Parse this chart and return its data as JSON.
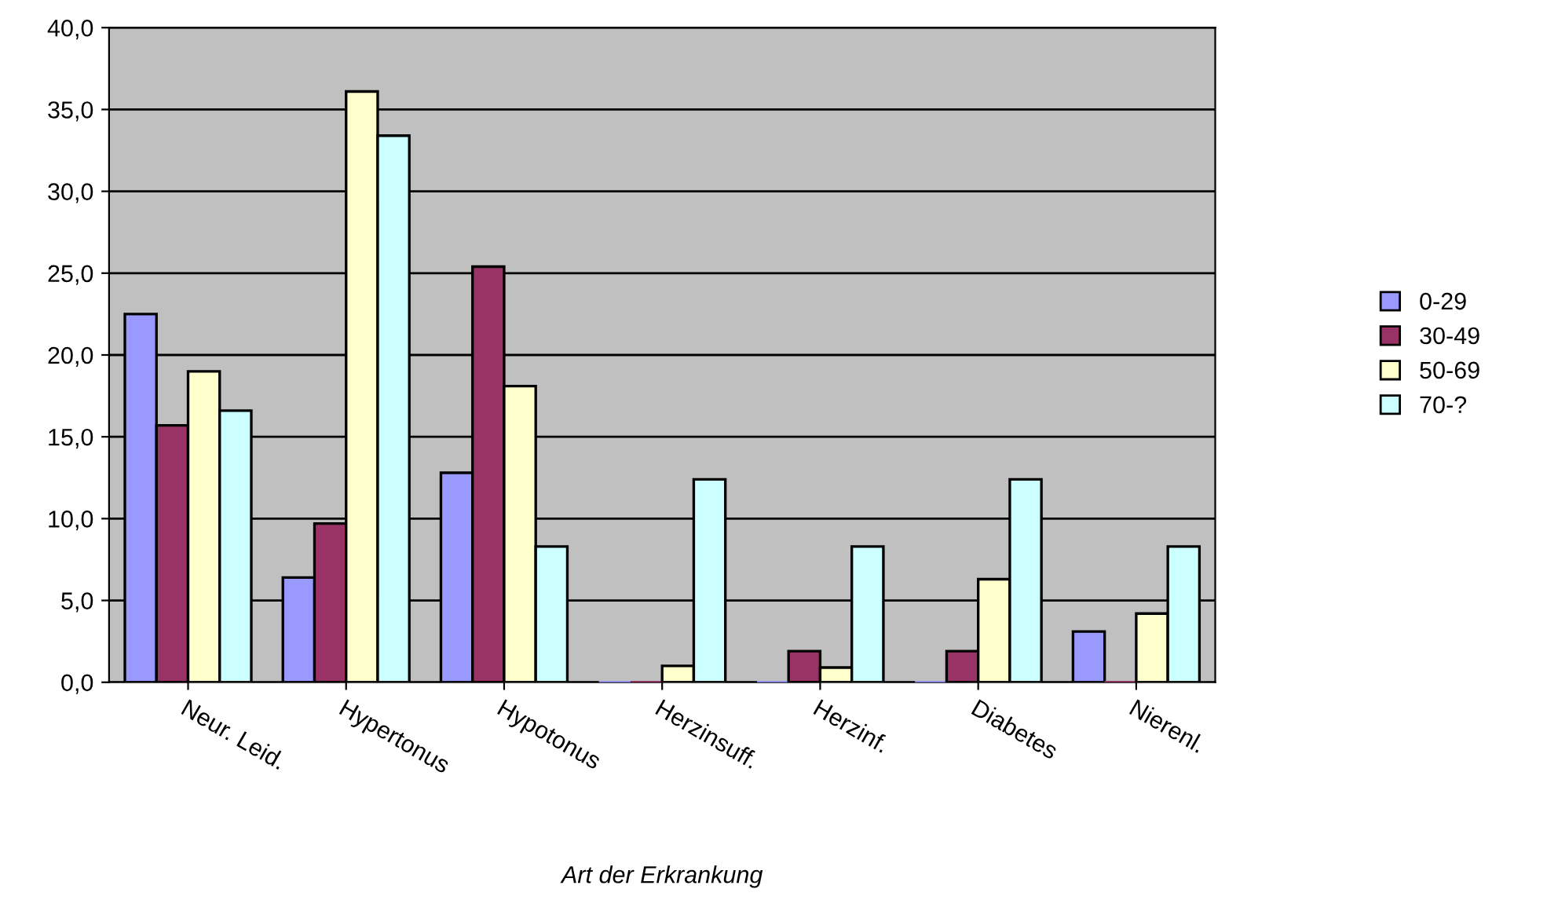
{
  "chart_data": {
    "type": "bar",
    "xlabel": "Art der Erkrankung",
    "categories": [
      "Neur. Leid.",
      "Hypertonus",
      "Hypotonus",
      "Herzinsuff.",
      "Herzinf.",
      "Diabetes",
      "Nierenl."
    ],
    "series": [
      {
        "name": "0-29",
        "color": "#9999ff",
        "values": [
          22.5,
          6.4,
          12.8,
          0,
          0,
          0,
          3.1
        ]
      },
      {
        "name": "30-49",
        "color": "#993366",
        "values": [
          15.7,
          9.7,
          25.4,
          0,
          1.9,
          1.9,
          0
        ]
      },
      {
        "name": "50-69",
        "color": "#ffffcc",
        "values": [
          19.0,
          36.1,
          18.1,
          1.0,
          0.9,
          6.3,
          4.2
        ]
      },
      {
        "name": "70-?",
        "color": "#ccffff",
        "values": [
          16.6,
          33.4,
          8.3,
          12.4,
          8.3,
          12.4,
          8.3
        ]
      }
    ],
    "ylim": [
      0,
      40
    ],
    "yticks": [
      {
        "value": 0,
        "label": "0,0"
      },
      {
        "value": 5,
        "label": "5,0"
      },
      {
        "value": 10,
        "label": "10,0"
      },
      {
        "value": 15,
        "label": "15,0"
      },
      {
        "value": 20,
        "label": "20,0"
      },
      {
        "value": 25,
        "label": "25,0"
      },
      {
        "value": 30,
        "label": "30,0"
      },
      {
        "value": 35,
        "label": "35,0"
      },
      {
        "value": 40,
        "label": "40,0"
      }
    ],
    "grid": "y",
    "legend": "right"
  }
}
